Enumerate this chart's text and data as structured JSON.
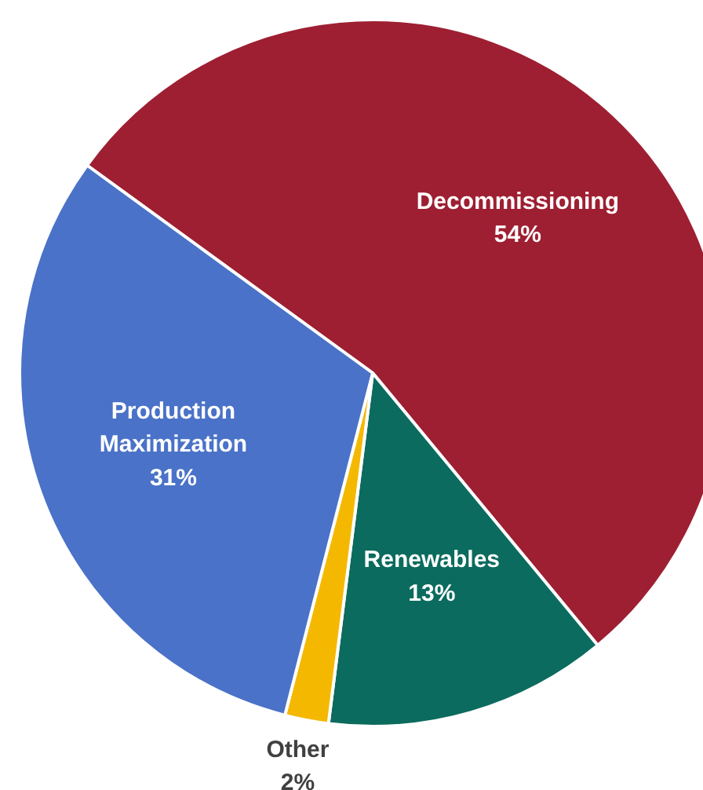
{
  "chart_data": {
    "type": "pie",
    "categories": [
      "Decommissioning",
      "Renewables",
      "Other",
      "Production Maximization"
    ],
    "values": [
      54,
      13,
      2,
      31
    ],
    "value_labels": [
      "54%",
      "13%",
      "2%",
      "31%"
    ],
    "colors": [
      "#9e1f32",
      "#0b6b5e",
      "#f5b800",
      "#4a72c8"
    ]
  }
}
